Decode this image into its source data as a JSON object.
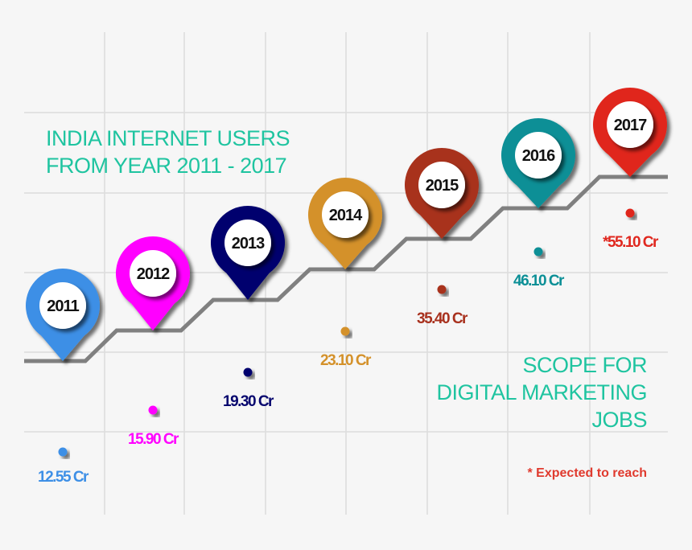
{
  "chart_data": {
    "type": "line",
    "title_lines": [
      "INDIA INTERNET USERS",
      "FROM YEAR 2011 - 2017"
    ],
    "subtitle_lines": [
      "SCOPE FOR",
      "DIGITAL MARKETING",
      "JOBS"
    ],
    "footnote": "* Expected to reach",
    "unit": "Cr",
    "grid": true,
    "line_color": "#808080",
    "points": [
      {
        "year": "2011",
        "value": 12.55,
        "label": "12.55 Cr",
        "color": "#3d8fe6"
      },
      {
        "year": "2012",
        "value": 15.9,
        "label": "15.90 Cr",
        "color": "#ff00ff"
      },
      {
        "year": "2013",
        "value": 19.3,
        "label": "19.30 Cr",
        "color": "#06066e"
      },
      {
        "year": "2014",
        "value": 23.1,
        "label": "23.10 Cr",
        "color": "#d4912a"
      },
      {
        "year": "2015",
        "value": 35.4,
        "label": "35.40 Cr",
        "color": "#a8311e"
      },
      {
        "year": "2016",
        "value": 46.1,
        "label": "46.10 Cr",
        "color": "#0b8f96"
      },
      {
        "year": "2017",
        "value": 55.1,
        "label": "*55.10 Cr",
        "color": "#e0281f",
        "expected": true
      }
    ]
  }
}
